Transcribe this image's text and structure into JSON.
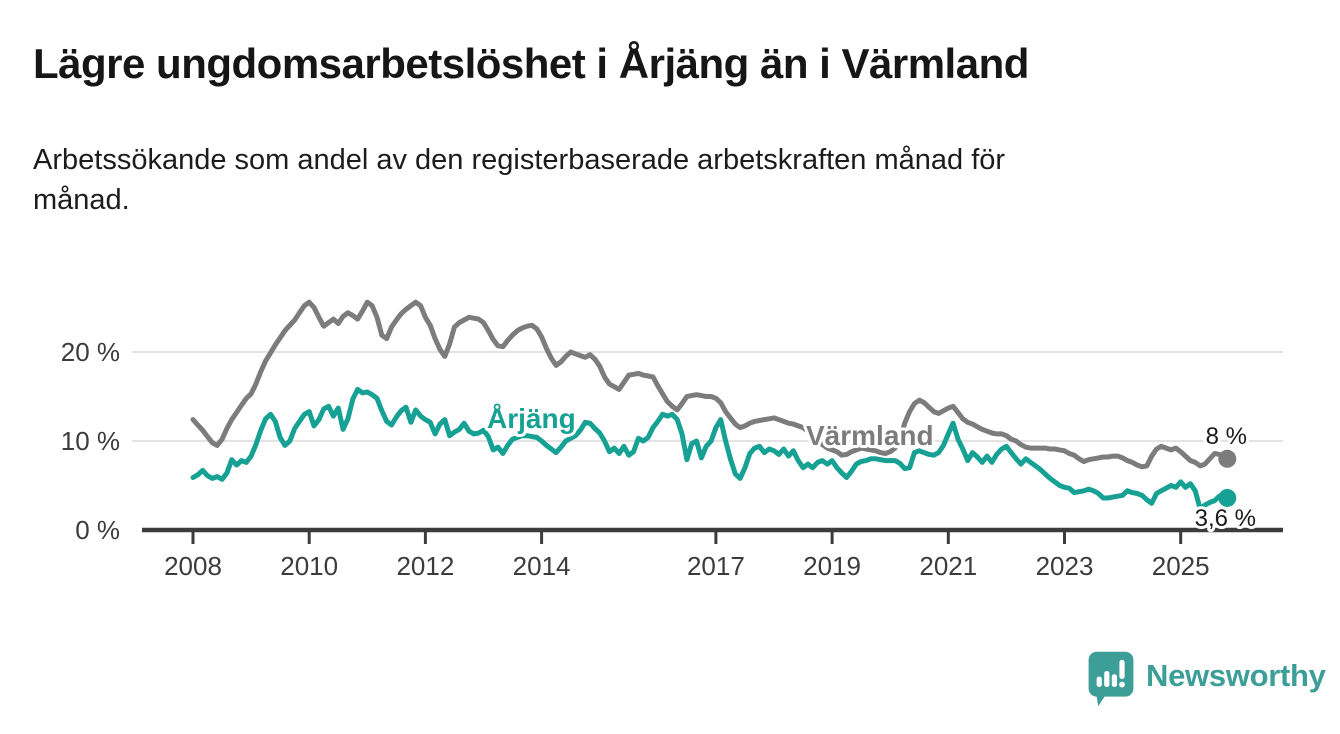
{
  "chart_data": {
    "type": "line",
    "title": "Lägre ungdomsarbetslöshet i Årjäng än i Värmland",
    "subtitle": "Arbetssökande som andel av den registerbaserade arbetskraften månad för\nmånad.",
    "unit": "%",
    "x_start": {
      "year": 2008,
      "month": 1
    },
    "x_end": {
      "year": 2025,
      "month": 10
    },
    "x_ticks": [
      2008,
      2010,
      2012,
      2014,
      2017,
      2019,
      2021,
      2023,
      2025
    ],
    "y_ticks": [
      {
        "value": 0,
        "label": "0 %"
      },
      {
        "value": 10,
        "label": "10 %"
      },
      {
        "value": 20,
        "label": "20 %"
      }
    ],
    "ylim": [
      0,
      27
    ],
    "grid": "horizontal-only",
    "legend": "inline-series-labels",
    "series": [
      {
        "id": "varmland",
        "name": "Värmland",
        "color": "#7c7c7c",
        "end_label": "8 %",
        "end_value": 8.0,
        "values": [
          12.4,
          11.8,
          11.2,
          10.5,
          9.8,
          9.5,
          10.2,
          11.4,
          12.4,
          13.2,
          14.0,
          14.8,
          15.3,
          16.4,
          17.8,
          19.0,
          19.9,
          20.8,
          21.6,
          22.4,
          23.0,
          23.6,
          24.4,
          25.2,
          25.6,
          25.0,
          23.9,
          22.9,
          23.3,
          23.7,
          23.2,
          24.0,
          24.4,
          24.1,
          23.7,
          24.6,
          25.6,
          25.2,
          23.9,
          21.9,
          21.5,
          22.8,
          23.6,
          24.3,
          24.8,
          25.2,
          25.6,
          25.2,
          23.9,
          23.0,
          21.5,
          20.3,
          19.5,
          20.9,
          22.8,
          23.3,
          23.6,
          23.9,
          23.8,
          23.7,
          23.3,
          22.4,
          21.4,
          20.7,
          20.6,
          21.3,
          21.9,
          22.4,
          22.7,
          22.9,
          23.0,
          22.6,
          21.7,
          20.4,
          19.3,
          18.5,
          18.9,
          19.5,
          20.0,
          19.8,
          19.6,
          19.4,
          19.7,
          19.2,
          18.4,
          17.2,
          16.4,
          16.1,
          15.8,
          16.6,
          17.4,
          17.5,
          17.6,
          17.4,
          17.3,
          17.2,
          16.2,
          15.3,
          14.4,
          13.9,
          13.5,
          14.2,
          15.0,
          15.1,
          15.2,
          15.1,
          15.0,
          15.0,
          14.8,
          14.3,
          13.3,
          12.6,
          11.9,
          11.5,
          11.7,
          12.0,
          12.2,
          12.3,
          12.4,
          12.5,
          12.6,
          12.4,
          12.2,
          12.0,
          11.9,
          11.7,
          11.5,
          11.1,
          10.8,
          10.0,
          9.6,
          9.2,
          9.0,
          8.8,
          8.4,
          8.5,
          8.8,
          9.0,
          9.2,
          9.1,
          9.0,
          8.9,
          8.7,
          8.6,
          8.8,
          9.2,
          10.0,
          12.0,
          13.3,
          14.2,
          14.6,
          14.3,
          13.8,
          13.3,
          13.1,
          13.4,
          13.7,
          13.9,
          13.2,
          12.5,
          12.1,
          11.9,
          11.6,
          11.3,
          11.1,
          10.9,
          10.8,
          10.8,
          10.6,
          10.2,
          10.0,
          9.6,
          9.3,
          9.2,
          9.2,
          9.2,
          9.2,
          9.1,
          9.1,
          9.0,
          8.9,
          8.6,
          8.4,
          8.0,
          7.7,
          7.9,
          8.0,
          8.1,
          8.2,
          8.2,
          8.3,
          8.3,
          8.1,
          7.8,
          7.6,
          7.3,
          7.1,
          7.2,
          8.3,
          9.1,
          9.4,
          9.2,
          9.0,
          9.2,
          8.8,
          8.3,
          7.8,
          7.6,
          7.2,
          7.4,
          8.0,
          8.6,
          8.5,
          8.0
        ]
      },
      {
        "id": "arjang",
        "name": "Årjäng",
        "color": "#16a194",
        "end_label": "3,6 %",
        "end_value": 3.6,
        "values": [
          5.9,
          6.2,
          6.7,
          6.1,
          5.8,
          6.0,
          5.7,
          6.4,
          7.9,
          7.3,
          7.8,
          7.6,
          8.3,
          9.6,
          11.2,
          12.5,
          13.0,
          12.2,
          10.4,
          9.5,
          10.0,
          11.4,
          12.2,
          13.0,
          13.3,
          11.7,
          12.4,
          13.6,
          13.9,
          12.8,
          13.7,
          11.3,
          12.5,
          14.7,
          15.8,
          15.4,
          15.5,
          15.2,
          14.8,
          13.4,
          12.2,
          11.8,
          12.7,
          13.4,
          13.8,
          12.1,
          13.5,
          12.8,
          12.4,
          12.1,
          10.8,
          11.9,
          12.4,
          10.6,
          11.0,
          11.3,
          12.0,
          11.1,
          10.8,
          10.9,
          11.2,
          10.5,
          9.0,
          9.3,
          8.6,
          9.5,
          10.2,
          10.4,
          10.6,
          10.6,
          10.5,
          10.4,
          10.0,
          9.5,
          9.1,
          8.7,
          9.3,
          10.0,
          10.3,
          10.6,
          11.2,
          12.1,
          12.0,
          11.4,
          10.9,
          10.0,
          8.8,
          9.2,
          8.6,
          9.4,
          8.4,
          8.8,
          10.3,
          10.0,
          10.4,
          11.5,
          12.2,
          13.0,
          12.8,
          13.0,
          12.4,
          10.8,
          7.9,
          9.7,
          10.0,
          8.1,
          9.4,
          10.0,
          11.5,
          12.4,
          10.0,
          8.0,
          6.3,
          5.8,
          7.0,
          8.6,
          9.2,
          9.4,
          8.7,
          9.1,
          8.9,
          8.5,
          9.1,
          8.3,
          8.9,
          7.8,
          7.0,
          7.4,
          7.0,
          7.6,
          7.8,
          7.4,
          7.8,
          7.0,
          6.4,
          5.9,
          6.6,
          7.4,
          7.7,
          7.8,
          8.0,
          8.0,
          7.9,
          7.8,
          7.8,
          7.8,
          7.5,
          6.9,
          7.0,
          8.7,
          8.9,
          8.7,
          8.5,
          8.4,
          8.7,
          9.5,
          10.8,
          12.0,
          10.2,
          9.1,
          7.8,
          8.7,
          8.2,
          7.6,
          8.3,
          7.6,
          8.5,
          9.1,
          9.4,
          8.7,
          8.0,
          7.4,
          8.0,
          7.6,
          7.2,
          6.8,
          6.3,
          5.8,
          5.4,
          5.0,
          4.8,
          4.7,
          4.2,
          4.3,
          4.4,
          4.6,
          4.4,
          4.1,
          3.6,
          3.6,
          3.7,
          3.8,
          3.9,
          4.4,
          4.2,
          4.1,
          3.9,
          3.4,
          3.0,
          4.1,
          4.4,
          4.7,
          5.0,
          4.8,
          5.4,
          4.8,
          5.2,
          4.4,
          2.4,
          2.8,
          3.1,
          3.3,
          3.8,
          3.6
        ]
      }
    ]
  },
  "colors": {
    "axis": "#3c3c3c",
    "grid": "#e3e3e3",
    "text": "#1a1a1a",
    "varmland": "#7c7c7c",
    "arjang": "#16a194"
  },
  "footer": {
    "brand": "Newsworthy",
    "brand_color": "#3d9e97"
  }
}
